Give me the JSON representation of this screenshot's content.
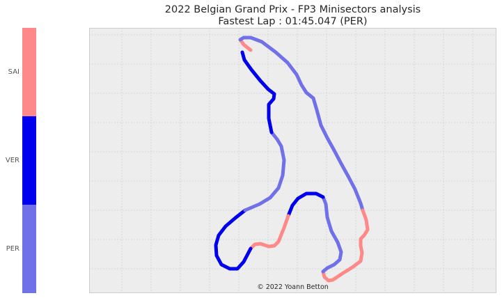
{
  "title_line1": "2022 Belgian Grand Prix - FP3 Minisectors analysis",
  "title_line2": "Fastest Lap : 01:45.047 (PER)",
  "credit": "© 2022 Yoann Betton",
  "chart_data": {
    "type": "scatter",
    "legend": [
      {
        "name": "SAI",
        "color": "#ff8888"
      },
      {
        "name": "VER",
        "color": "#0000ee"
      },
      {
        "name": "PER",
        "color": "#7070e8"
      }
    ],
    "grid": true,
    "track": [
      {
        "driver": "SAI",
        "points": [
          [
            232,
            32
          ],
          [
            222,
            24
          ],
          [
            217,
            17
          ]
        ]
      },
      {
        "driver": "PER",
        "points": [
          [
            217,
            17
          ],
          [
            222,
            14
          ],
          [
            232,
            14
          ],
          [
            248,
            20
          ],
          [
            268,
            35
          ],
          [
            285,
            50
          ],
          [
            298,
            67
          ],
          [
            305,
            82
          ],
          [
            312,
            93
          ],
          [
            322,
            101
          ],
          [
            327,
            118
          ],
          [
            333,
            140
          ],
          [
            342,
            158
          ],
          [
            352,
            176
          ],
          [
            362,
            195
          ],
          [
            372,
            213
          ],
          [
            382,
            232
          ],
          [
            390,
            252
          ],
          [
            393,
            262
          ]
        ]
      },
      {
        "driver": "SAI",
        "points": [
          [
            393,
            262
          ],
          [
            398,
            276
          ],
          [
            400,
            290
          ],
          [
            395,
            298
          ],
          [
            390,
            303
          ],
          [
            390,
            313
          ],
          [
            392,
            323
          ],
          [
            390,
            335
          ],
          [
            378,
            344
          ],
          [
            365,
            352
          ],
          [
            350,
            362
          ],
          [
            344,
            363
          ],
          [
            338,
            358
          ],
          [
            336,
            350
          ]
        ]
      },
      {
        "driver": "PER",
        "points": [
          [
            336,
            350
          ],
          [
            342,
            345
          ],
          [
            352,
            340
          ],
          [
            360,
            333
          ],
          [
            362,
            322
          ],
          [
            357,
            308
          ],
          [
            348,
            292
          ],
          [
            342,
            272
          ],
          [
            340,
            253
          ],
          [
            336,
            243
          ]
        ]
      },
      {
        "driver": "VER",
        "points": [
          [
            336,
            243
          ],
          [
            326,
            238
          ],
          [
            312,
            238
          ],
          [
            300,
            245
          ],
          [
            292,
            255
          ],
          [
            286,
            270
          ]
        ]
      },
      {
        "driver": "SAI",
        "points": [
          [
            286,
            270
          ],
          [
            280,
            287
          ],
          [
            272,
            307
          ],
          [
            266,
            313
          ],
          [
            258,
            314
          ],
          [
            246,
            310
          ],
          [
            238,
            311
          ],
          [
            232,
            317
          ]
        ]
      },
      {
        "driver": "VER",
        "points": [
          [
            232,
            317
          ],
          [
            222,
            336
          ],
          [
            213,
            346
          ],
          [
            202,
            346
          ],
          [
            190,
            340
          ],
          [
            183,
            327
          ],
          [
            182,
            312
          ],
          [
            186,
            298
          ],
          [
            196,
            285
          ],
          [
            210,
            273
          ],
          [
            224,
            262
          ]
        ]
      },
      {
        "driver": "PER",
        "points": [
          [
            224,
            262
          ],
          [
            245,
            253
          ],
          [
            260,
            244
          ],
          [
            272,
            230
          ],
          [
            278,
            212
          ],
          [
            280,
            190
          ],
          [
            276,
            170
          ],
          [
            270,
            160
          ],
          [
            262,
            150
          ]
        ]
      },
      {
        "driver": "VER",
        "points": [
          [
            262,
            150
          ],
          [
            258,
            130
          ],
          [
            258,
            110
          ],
          [
            265,
            102
          ],
          [
            266,
            95
          ],
          [
            257,
            88
          ],
          [
            246,
            76
          ],
          [
            233,
            60
          ],
          [
            223,
            46
          ],
          [
            220,
            35
          ]
        ]
      }
    ]
  }
}
